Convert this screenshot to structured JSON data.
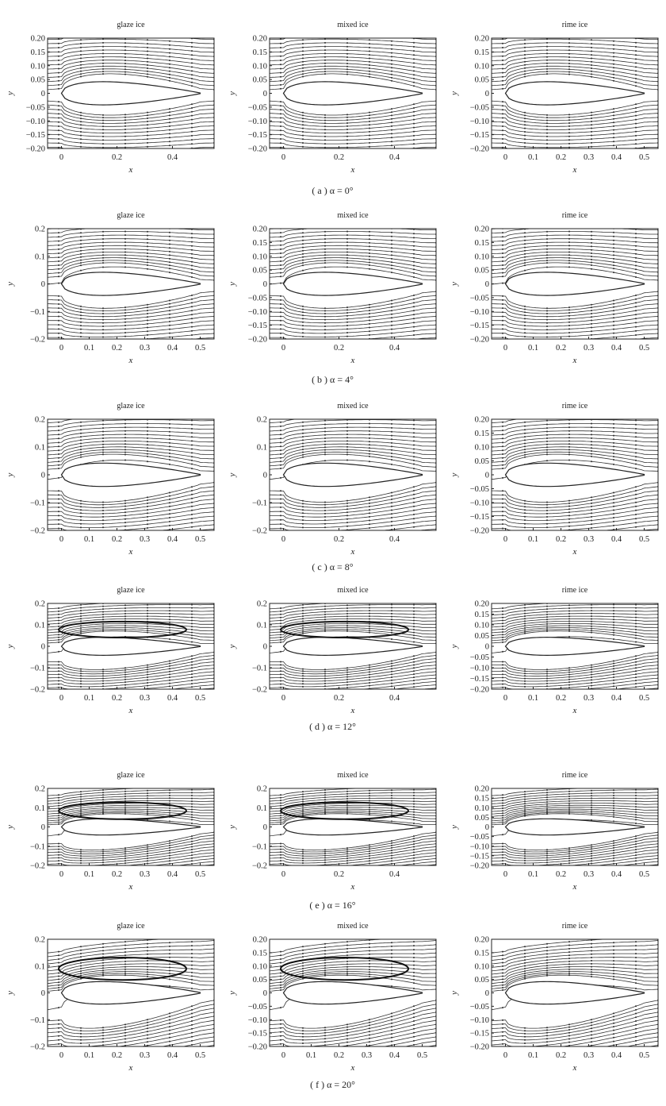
{
  "rows": [
    {
      "caption": "( a )  α = 0°",
      "alpha": 0,
      "panels": [
        {
          "title": "glaze ice",
          "yticks": [
            "0.20",
            "0.15",
            "0.10",
            "0.05",
            "0",
            "−0.05",
            "−0.10",
            "−0.15",
            "−0.20"
          ],
          "xticks": [
            "0",
            "0.2",
            "0.4"
          ]
        },
        {
          "title": "mixed ice",
          "yticks": [
            "0.20",
            "0.15",
            "0.10",
            "0.05",
            "0",
            "−0.05",
            "−0.10",
            "−0.15",
            "−0.20"
          ],
          "xticks": [
            "0",
            "0.2",
            "0.4"
          ]
        },
        {
          "title": "rime ice",
          "yticks": [
            "0.20",
            "0.15",
            "0.10",
            "0.05",
            "0",
            "−0.05",
            "−0.10",
            "−0.15",
            "−0.20"
          ],
          "xticks": [
            "0",
            "0.1",
            "0.2",
            "0.3",
            "0.4",
            "0.5"
          ]
        }
      ]
    },
    {
      "caption": "( b )  α = 4°",
      "alpha": 4,
      "panels": [
        {
          "title": "glaze ice",
          "yticks": [
            "0.2",
            "0.1",
            "0",
            "−0.1",
            "−0.2"
          ],
          "xticks": [
            "0",
            "0.1",
            "0.2",
            "0.3",
            "0.4",
            "0.5"
          ]
        },
        {
          "title": "mixed ice",
          "yticks": [
            "0.20",
            "0.15",
            "0.10",
            "0.05",
            "0",
            "−0.05",
            "−0.10",
            "−0.15",
            "−0.20"
          ],
          "xticks": [
            "0",
            "0.2",
            "0.4"
          ]
        },
        {
          "title": "rime ice",
          "yticks": [
            "0.20",
            "0.15",
            "0.10",
            "0.05",
            "0",
            "−0.05",
            "−0.10",
            "−0.15",
            "−0.20"
          ],
          "xticks": [
            "0",
            "0.1",
            "0.2",
            "0.3",
            "0.4",
            "0.5"
          ]
        }
      ]
    },
    {
      "caption": "( c )  α = 8°",
      "alpha": 8,
      "panels": [
        {
          "title": "glaze ice",
          "yticks": [
            "0.2",
            "0.1",
            "0",
            "−0.1",
            "−0.2"
          ],
          "xticks": [
            "0",
            "0.1",
            "0.2",
            "0.3",
            "0.4",
            "0.5"
          ]
        },
        {
          "title": "mixed ice",
          "yticks": [
            "0.2",
            "0.1",
            "0",
            "−0.1",
            "−0.2"
          ],
          "xticks": [
            "0",
            "0.2",
            "0.4"
          ]
        },
        {
          "title": "rime ice",
          "yticks": [
            "0.20",
            "0.15",
            "0.10",
            "0.05",
            "0",
            "−0.05",
            "−0.10",
            "−0.15",
            "−0.20"
          ],
          "xticks": [
            "0",
            "0.1",
            "0.2",
            "0.3",
            "0.4",
            "0.5"
          ]
        }
      ]
    },
    {
      "caption": "( d )  α = 12°",
      "alpha": 12,
      "panels": [
        {
          "title": "glaze ice",
          "yticks": [
            "0.2",
            "0.1",
            "0",
            "−0.1",
            "−0.2"
          ],
          "xticks": [
            "0",
            "0.1",
            "0.2",
            "0.3",
            "0.4",
            "0.5"
          ]
        },
        {
          "title": "mixed ice",
          "yticks": [
            "0.2",
            "0.1",
            "0",
            "−0.1",
            "−0.2"
          ],
          "xticks": [
            "0",
            "0.2",
            "0.4"
          ]
        },
        {
          "title": "rime ice",
          "yticks": [
            "0.20",
            "0.15",
            "0.10",
            "0.05",
            "0",
            "−0.05",
            "−0.10",
            "−0.15",
            "−0.20"
          ],
          "xticks": [
            "0",
            "0.1",
            "0.2",
            "0.3",
            "0.4",
            "0.5"
          ]
        }
      ]
    },
    {
      "caption": "( e )  α = 16°",
      "alpha": 16,
      "panels": [
        {
          "title": "glaze ice",
          "yticks": [
            "0.2",
            "0.1",
            "0",
            "−0.1",
            "−0.2"
          ],
          "xticks": [
            "0",
            "0.1",
            "0.2",
            "0.3",
            "0.4",
            "0.5"
          ]
        },
        {
          "title": "mixed ice",
          "yticks": [
            "0.2",
            "0.1",
            "0",
            "−0.1",
            "−0.2"
          ],
          "xticks": [
            "0",
            "0.2",
            "0.4"
          ]
        },
        {
          "title": "rime ice",
          "yticks": [
            "0.20",
            "0.15",
            "0.10",
            "0.05",
            "0",
            "−0.05",
            "−0.10",
            "−0.15",
            "−0.20"
          ],
          "xticks": [
            "0",
            "0.1",
            "0.2",
            "0.3",
            "0.4",
            "0.5"
          ]
        }
      ]
    },
    {
      "caption": "( f )  α = 20°",
      "alpha": 20,
      "panels": [
        {
          "title": "glaze ice",
          "yticks": [
            "0.2",
            "0.1",
            "0",
            "−0.1",
            "−0.2"
          ],
          "xticks": [
            "0",
            "0.1",
            "0.2",
            "0.3",
            "0.4",
            "0.5"
          ]
        },
        {
          "title": "mixed ice",
          "yticks": [
            "0.20",
            "0.15",
            "0.10",
            "0.05",
            "0",
            "−0.05",
            "−0.10",
            "−0.15",
            "−0.20"
          ],
          "xticks": [
            "0",
            "0.1",
            "0.2",
            "0.3",
            "0.4",
            "0.5"
          ]
        },
        {
          "title": "rime ice",
          "yticks": [
            "0.20",
            "0.15",
            "0.10",
            "0.05",
            "0",
            "−0.05",
            "−0.10",
            "−0.15",
            "−0.20"
          ],
          "xticks": [
            "0",
            "0.1",
            "0.2",
            "0.3",
            "0.4",
            "0.5"
          ]
        }
      ]
    }
  ],
  "axes": {
    "xlabel": "x",
    "ylabel": "y",
    "xlim": [
      -0.05,
      0.55
    ],
    "ylim": [
      -0.2,
      0.2
    ]
  }
}
